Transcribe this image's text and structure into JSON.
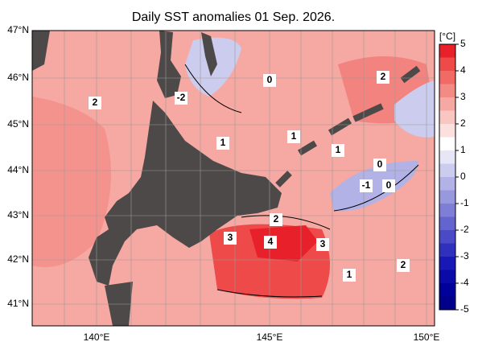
{
  "title": "Daily SST anomalies 01 Sep. 2026.",
  "lon_labels": [
    "140°E",
    "145°E",
    "150°E"
  ],
  "lat_labels": [
    "47°N",
    "46°N",
    "45°N",
    "44°N",
    "43°N",
    "42°N",
    "41°N"
  ],
  "colorbar": {
    "label": "[°C]",
    "ticks": [
      5,
      4,
      3,
      2,
      1,
      0,
      -1,
      -2,
      -3,
      -4,
      -5
    ],
    "colors": [
      "#e8202a",
      "#ee4a4a",
      "#f26a66",
      "#f48a84",
      "#f6a8a2",
      "#f9c6c2",
      "#fbe0dd",
      "#ffffff",
      "#e6e6f6",
      "#ccccee",
      "#b2b2e6",
      "#9898de",
      "#7e7ed6",
      "#6464ce",
      "#4a4ac6",
      "#3030be",
      "#1818b6",
      "#0a0aa8",
      "#00009a",
      "#00008a"
    ]
  },
  "contour_labels": [
    "2",
    "-2",
    "0",
    "2",
    "1",
    "1",
    "1",
    "0",
    "-1",
    "0",
    "2",
    "3",
    "4",
    "3",
    "2",
    "1"
  ]
}
